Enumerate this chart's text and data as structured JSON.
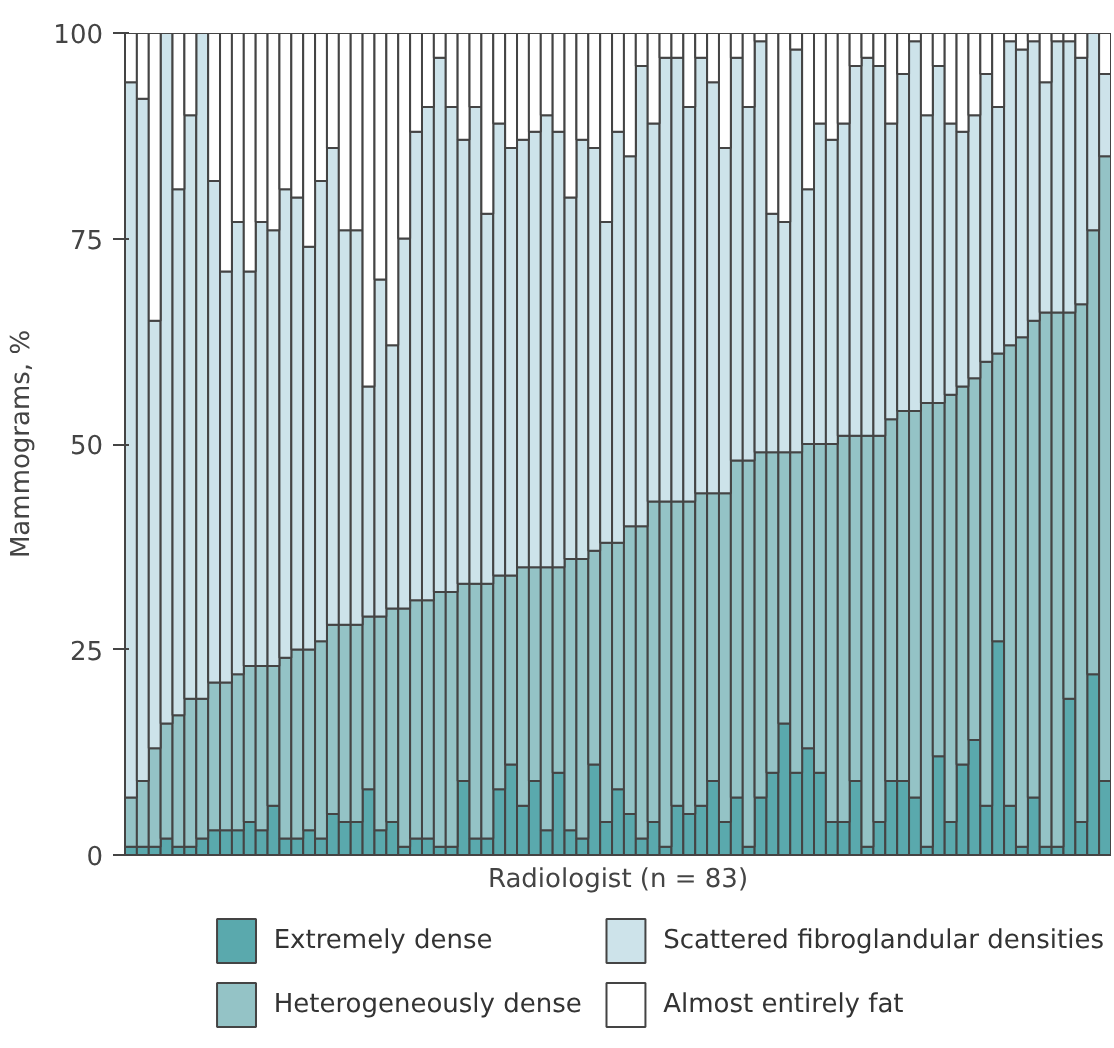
{
  "chart_data": {
    "type": "bar",
    "stacked": true,
    "xlabel": "Radiologist (n = 83)",
    "ylabel": "Mammograms, %",
    "ylim": [
      0,
      100
    ],
    "yticks": [
      0,
      25,
      50,
      75,
      100
    ],
    "grid": false,
    "legend": "bottom",
    "tick_labels": "y",
    "categories": [
      null,
      null,
      null,
      null,
      null,
      null,
      null,
      null,
      null,
      null,
      null,
      null,
      null,
      null,
      null,
      null,
      null,
      null,
      null,
      null,
      null,
      null,
      null,
      null,
      null,
      null,
      null,
      null,
      null,
      null,
      null,
      null,
      null,
      null,
      null,
      null,
      null,
      null,
      null,
      null,
      null,
      null,
      null,
      null,
      null,
      null,
      null,
      null,
      null,
      null,
      null,
      null,
      null,
      null,
      null,
      null,
      null,
      null,
      null,
      null,
      null,
      null,
      null,
      null,
      null,
      null,
      null,
      null,
      null,
      null,
      null,
      null,
      null,
      null,
      null,
      null,
      null,
      null,
      null,
      null,
      null,
      null,
      null
    ],
    "series": [
      {
        "name": "Extremely dense",
        "color": "#5aa9ad",
        "values": [
          1,
          1,
          1,
          2,
          1,
          1,
          2,
          3,
          3,
          3,
          4,
          3,
          6,
          2,
          2,
          3,
          2,
          5,
          4,
          4,
          8,
          3,
          4,
          1,
          2,
          2,
          1,
          1,
          9,
          2,
          2,
          8,
          11,
          6,
          9,
          3,
          10,
          3,
          2,
          11,
          4,
          8,
          5,
          2,
          4,
          1,
          6,
          5,
          6,
          9,
          4,
          7,
          1,
          7,
          10,
          16,
          10,
          13,
          10,
          4,
          4,
          9,
          1,
          4,
          9,
          9,
          7,
          1,
          12,
          4,
          11,
          14,
          6,
          26,
          6,
          1,
          7,
          1,
          1,
          19,
          4,
          22,
          9
        ]
      },
      {
        "name": "Heterogeneously dense",
        "color": "#94c3c6",
        "values": [
          6,
          8,
          12,
          14,
          16,
          18,
          17,
          18,
          18,
          19,
          19,
          20,
          17,
          22,
          23,
          22,
          24,
          23,
          24,
          24,
          21,
          26,
          26,
          29,
          29,
          29,
          31,
          31,
          24,
          31,
          31,
          26,
          23,
          29,
          26,
          32,
          25,
          33,
          34,
          26,
          34,
          30,
          35,
          38,
          39,
          42,
          37,
          38,
          38,
          35,
          40,
          41,
          47,
          42,
          39,
          33,
          39,
          37,
          40,
          46,
          47,
          42,
          50,
          47,
          44,
          45,
          47,
          54,
          43,
          52,
          46,
          44,
          54,
          35,
          56,
          62,
          58,
          65,
          65,
          47,
          63,
          54,
          76
        ]
      },
      {
        "name": "Scattered fibroglandular densities",
        "color": "#cde3ea",
        "values": [
          87,
          83,
          52,
          84,
          64,
          71,
          81,
          61,
          50,
          55,
          48,
          54,
          53,
          57,
          55,
          49,
          56,
          58,
          48,
          48,
          28,
          41,
          32,
          45,
          57,
          60,
          65,
          59,
          54,
          58,
          45,
          55,
          52,
          52,
          53,
          55,
          53,
          44,
          51,
          49,
          39,
          50,
          45,
          56,
          46,
          54,
          54,
          48,
          53,
          50,
          42,
          49,
          43,
          50,
          29,
          28,
          49,
          31,
          39,
          37,
          38,
          45,
          46,
          45,
          36,
          41,
          45,
          35,
          41,
          33,
          31,
          32,
          35,
          30,
          37,
          35,
          34,
          28,
          33,
          33,
          30,
          24,
          10
        ]
      },
      {
        "name": "Almost entirely fat",
        "color": "#ffffff",
        "values": [
          6,
          8,
          35,
          0,
          19,
          10,
          0,
          18,
          29,
          23,
          29,
          23,
          24,
          19,
          20,
          26,
          18,
          14,
          24,
          24,
          43,
          30,
          38,
          25,
          12,
          9,
          3,
          9,
          13,
          9,
          22,
          11,
          14,
          13,
          12,
          10,
          12,
          20,
          13,
          14,
          23,
          12,
          15,
          4,
          11,
          3,
          3,
          9,
          3,
          6,
          14,
          3,
          9,
          1,
          22,
          23,
          2,
          19,
          11,
          13,
          11,
          4,
          3,
          4,
          11,
          5,
          1,
          10,
          4,
          11,
          12,
          10,
          5,
          9,
          1,
          2,
          1,
          6,
          1,
          1,
          3,
          0,
          5
        ]
      }
    ]
  }
}
